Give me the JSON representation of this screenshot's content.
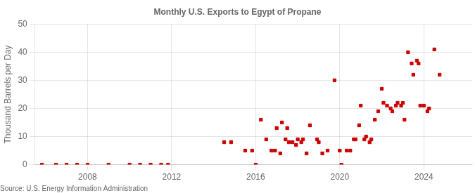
{
  "chart_data": {
    "type": "scatter",
    "title": "Monthly U.S. Exports to Egypt of Propane",
    "y_label": "Thousand Barrels per Day",
    "annotations": [
      "Source: U.S. Energy Information Administration"
    ],
    "x": [
      2005.83,
      2006.5,
      2007.0,
      2007.5,
      2008.0,
      2009.0,
      2010.0,
      2010.5,
      2011.0,
      2011.5,
      2011.83,
      2014.5,
      2014.83,
      2015.5,
      2015.83,
      2016.0,
      2016.25,
      2016.5,
      2016.75,
      2016.92,
      2017.0,
      2017.17,
      2017.25,
      2017.42,
      2017.5,
      2017.58,
      2017.75,
      2017.92,
      2018.0,
      2018.17,
      2018.25,
      2018.42,
      2018.58,
      2018.92,
      2019.0,
      2019.17,
      2019.42,
      2019.75,
      2020.0,
      2020.08,
      2020.33,
      2020.5,
      2020.67,
      2020.75,
      2020.92,
      2021.0,
      2021.17,
      2021.25,
      2021.42,
      2021.5,
      2021.67,
      2021.83,
      2022.0,
      2022.08,
      2022.25,
      2022.42,
      2022.5,
      2022.67,
      2022.75,
      2022.92,
      2023.0,
      2023.08,
      2023.25,
      2023.42,
      2023.5,
      2023.67,
      2023.75,
      2023.83,
      2024.0,
      2024.17,
      2024.25,
      2024.5,
      2024.75
    ],
    "values": [
      0,
      0,
      0,
      0,
      0,
      0,
      0,
      0,
      0,
      0,
      0,
      8,
      8,
      5,
      5,
      0,
      16,
      9,
      5,
      5,
      13,
      4,
      15,
      9,
      13,
      8,
      8,
      7,
      9,
      8,
      9,
      4,
      14,
      9,
      8,
      4,
      5,
      30,
      5,
      0,
      5,
      5,
      9,
      9,
      14,
      21,
      9,
      10,
      8,
      9,
      16,
      19,
      27,
      22,
      21,
      20,
      19,
      21,
      22,
      21,
      22,
      16,
      40,
      36,
      32,
      37,
      36,
      21,
      21,
      19,
      20,
      41,
      32
    ],
    "color": "#cc0000",
    "marker": "square",
    "xlim": [
      2005.5,
      2026.3
    ],
    "xticks": [
      2008,
      2012,
      2016,
      2020,
      2024
    ],
    "ylim": [
      0,
      50
    ],
    "yticks": [
      0,
      10,
      20,
      30,
      40,
      50
    ],
    "grid": true
  }
}
